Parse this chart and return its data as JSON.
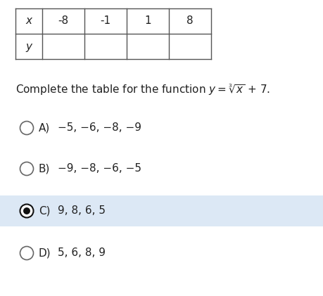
{
  "table_x_vals": [
    "x",
    "-8",
    "-1",
    "1",
    "8"
  ],
  "table_y_label": "y",
  "options": [
    {
      "label": "A)",
      "text": "−5, −6, −8, −9",
      "selected": false
    },
    {
      "label": "B)",
      "text": "−9, −8, −6, −5",
      "selected": false
    },
    {
      "label": "C)",
      "text": "9, 8, 6, 5",
      "selected": true
    },
    {
      "label": "D)",
      "text": "5, 6, 8, 9",
      "selected": false
    }
  ],
  "bg_color": "#ffffff",
  "selected_bg": "#dce8f5",
  "table_border_color": "#555555",
  "text_color": "#222222",
  "circle_color": "#666666",
  "filled_color": "#111111",
  "font_size": 11.0
}
